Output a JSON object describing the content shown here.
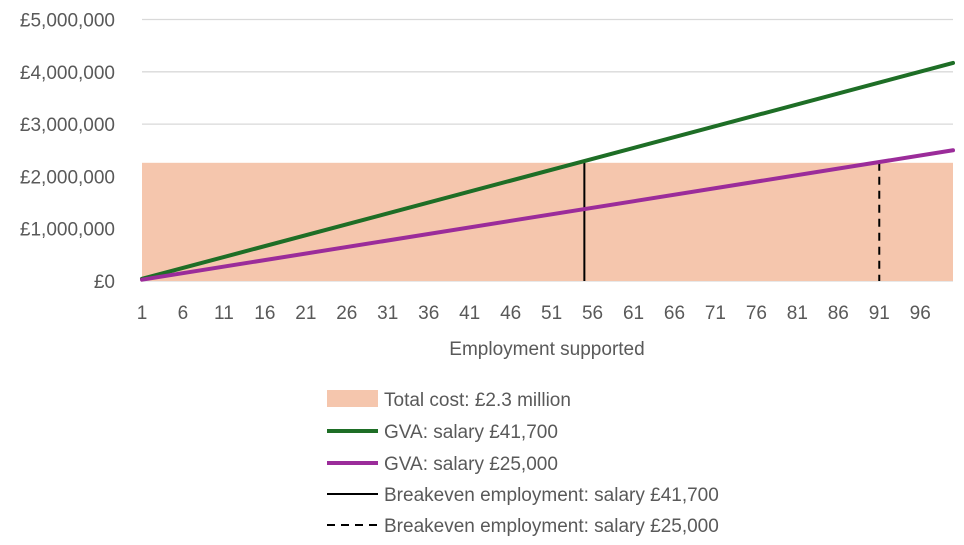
{
  "chart_data": {
    "type": "line",
    "xlabel": "Employment supported",
    "ylabel": "",
    "x_range": [
      1,
      100
    ],
    "x_tick_labels": [
      "1",
      "6",
      "11",
      "16",
      "21",
      "26",
      "31",
      "36",
      "41",
      "46",
      "51",
      "56",
      "61",
      "66",
      "71",
      "76",
      "81",
      "86",
      "91",
      "96"
    ],
    "ylim": [
      0,
      5000000
    ],
    "y_tick_labels": [
      "£0",
      "£1,000,000",
      "£2,000,000",
      "£3,000,000",
      "£4,000,000",
      "£5,000,000"
    ],
    "y_ticks": [
      0,
      1000000,
      2000000,
      3000000,
      4000000,
      5000000
    ],
    "grid": true,
    "legend_position": "bottom",
    "total_cost": {
      "name": "Total cost: £2.3 million",
      "value": 2260000,
      "color": "#f5c6ad"
    },
    "series": [
      {
        "name": "GVA: salary £41,700",
        "per_job": 41700,
        "color": "#1e6e26"
      },
      {
        "name": "GVA: salary £25,000",
        "per_job": 25000,
        "color": "#9b2c9a"
      }
    ],
    "breakeven": [
      {
        "name": "Breakeven employment: salary £41,700",
        "x": 55,
        "style": "solid"
      },
      {
        "name": "Breakeven employment: salary £25,000",
        "x": 91,
        "style": "dashed"
      }
    ]
  }
}
